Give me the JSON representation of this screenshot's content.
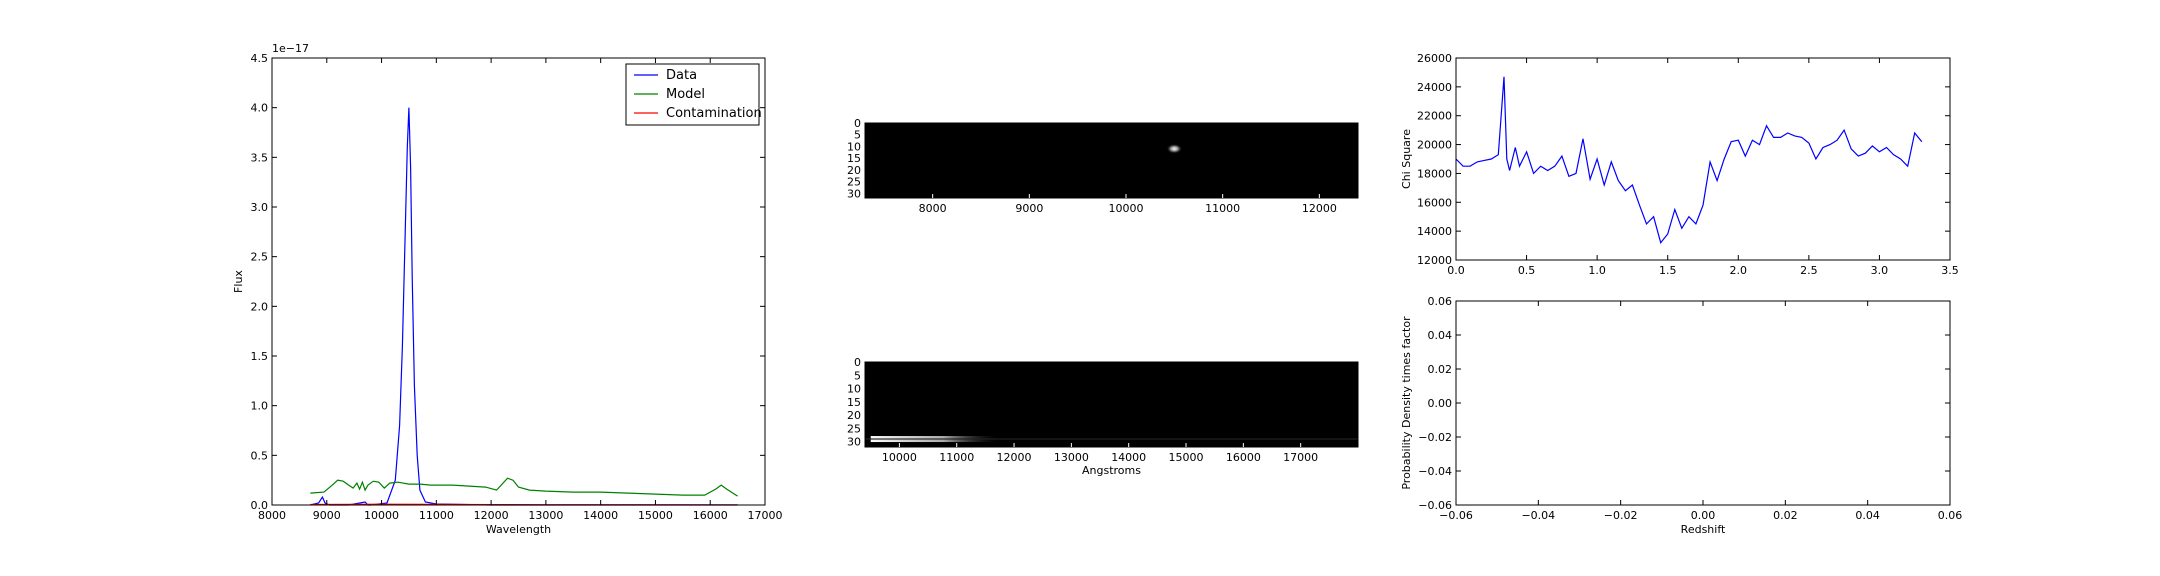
{
  "chart_data": [
    {
      "id": "spectrum",
      "type": "line",
      "xlabel": "Wavelength",
      "ylabel": "Flux",
      "offset_label": "1e−17",
      "xlim": [
        8000,
        17000
      ],
      "ylim": [
        0.0,
        4.5
      ],
      "xticks": [
        8000,
        9000,
        10000,
        11000,
        12000,
        13000,
        14000,
        15000,
        16000,
        17000
      ],
      "yticks": [
        "0.0",
        "0.5",
        "1.0",
        "1.5",
        "2.0",
        "2.5",
        "3.0",
        "3.5",
        "4.0",
        "4.5"
      ],
      "legend_position": "top-right",
      "series": [
        {
          "name": "Data",
          "color": "#0000ff",
          "x": [
            8700,
            8850,
            8920,
            8970,
            9050,
            9400,
            9700,
            9750,
            9800,
            10100,
            10250,
            10330,
            10380,
            10430,
            10470,
            10500,
            10530,
            10560,
            10600,
            10650,
            10700,
            10800,
            11000,
            12000,
            16500
          ],
          "y": [
            0.0,
            0.02,
            0.08,
            0.02,
            0.0,
            0.0,
            0.03,
            0.0,
            0.0,
            0.02,
            0.25,
            0.8,
            1.6,
            2.7,
            3.6,
            4.0,
            3.4,
            2.3,
            1.2,
            0.5,
            0.15,
            0.03,
            0.01,
            0.0,
            0.0
          ]
        },
        {
          "name": "Model",
          "color": "#008000",
          "x": [
            8700,
            8950,
            9100,
            9200,
            9300,
            9400,
            9480,
            9550,
            9600,
            9650,
            9700,
            9750,
            9850,
            9950,
            10050,
            10150,
            10300,
            10500,
            10700,
            10900,
            11300,
            11600,
            11900,
            12100,
            12300,
            12400,
            12500,
            12700,
            13000,
            13500,
            14000,
            14500,
            15000,
            15500,
            15900,
            16100,
            16200,
            16300,
            16500
          ],
          "y": [
            0.12,
            0.13,
            0.2,
            0.25,
            0.24,
            0.2,
            0.17,
            0.22,
            0.16,
            0.23,
            0.15,
            0.2,
            0.24,
            0.23,
            0.17,
            0.22,
            0.23,
            0.21,
            0.21,
            0.2,
            0.2,
            0.19,
            0.18,
            0.15,
            0.27,
            0.25,
            0.18,
            0.15,
            0.14,
            0.13,
            0.13,
            0.12,
            0.11,
            0.1,
            0.1,
            0.16,
            0.2,
            0.16,
            0.09
          ]
        },
        {
          "name": "Contamination",
          "color": "#ff0000",
          "x": [
            8700,
            9500,
            10000,
            11000,
            12000,
            13000,
            14000,
            16500
          ],
          "y": [
            0.005,
            0.006,
            0.008,
            0.006,
            0.004,
            0.003,
            0.003,
            0.002
          ]
        }
      ]
    },
    {
      "id": "image-top",
      "type": "heatmap",
      "xlim": [
        7300,
        12400
      ],
      "ylim": [
        0,
        32
      ],
      "xticks": [
        "8000",
        "9000",
        "10000",
        "11000",
        "12000"
      ],
      "yticks": [
        "0",
        "5",
        "10",
        "15",
        "20",
        "25",
        "30"
      ],
      "source": {
        "x": 10500,
        "y": 11,
        "intensity": 1.0
      },
      "colormap": "gray"
    },
    {
      "id": "image-bottom",
      "type": "heatmap",
      "xlabel": "Angstroms",
      "xlim": [
        9400,
        18000
      ],
      "ylim": [
        0,
        32
      ],
      "xticks": [
        "10000",
        "11000",
        "12000",
        "13000",
        "14000",
        "15000",
        "16000",
        "17000"
      ],
      "yticks": [
        "0",
        "5",
        "10",
        "15",
        "20",
        "25",
        "30"
      ],
      "trace": {
        "x_start": 9500,
        "x_end": 11800,
        "y": 29,
        "intensity": 1.0
      },
      "colormap": "gray"
    },
    {
      "id": "chi-square",
      "type": "line",
      "ylabel": "Chi Square",
      "xlim": [
        0.0,
        3.5
      ],
      "ylim": [
        12000,
        26000
      ],
      "xticks": [
        "0.0",
        "0.5",
        "1.0",
        "1.5",
        "2.0",
        "2.5",
        "3.0",
        "3.5"
      ],
      "yticks": [
        "12000",
        "14000",
        "16000",
        "18000",
        "20000",
        "22000",
        "24000",
        "26000"
      ],
      "series": [
        {
          "color": "#0000ff",
          "x": [
            0.0,
            0.05,
            0.1,
            0.15,
            0.2,
            0.25,
            0.3,
            0.34,
            0.36,
            0.38,
            0.42,
            0.45,
            0.5,
            0.55,
            0.6,
            0.65,
            0.7,
            0.75,
            0.8,
            0.85,
            0.9,
            0.95,
            1.0,
            1.05,
            1.1,
            1.15,
            1.2,
            1.25,
            1.3,
            1.35,
            1.4,
            1.45,
            1.5,
            1.55,
            1.6,
            1.65,
            1.7,
            1.75,
            1.8,
            1.85,
            1.9,
            1.95,
            2.0,
            2.05,
            2.1,
            2.15,
            2.2,
            2.25,
            2.3,
            2.35,
            2.4,
            2.45,
            2.5,
            2.55,
            2.6,
            2.65,
            2.7,
            2.75,
            2.8,
            2.85,
            2.9,
            2.95,
            3.0,
            3.05,
            3.1,
            3.15,
            3.2,
            3.25,
            3.3
          ],
          "y": [
            19000,
            18500,
            18500,
            18800,
            18900,
            19000,
            19300,
            24700,
            19000,
            18200,
            19800,
            18500,
            19500,
            18000,
            18500,
            18200,
            18500,
            19200,
            17800,
            18000,
            20400,
            17600,
            19000,
            17200,
            18800,
            17500,
            16800,
            17200,
            15800,
            14500,
            15000,
            13200,
            13800,
            15500,
            14200,
            15000,
            14500,
            15800,
            18800,
            17500,
            19000,
            20200,
            20300,
            19200,
            20300,
            20000,
            21300,
            20500,
            20500,
            20800,
            20600,
            20500,
            20100,
            19000,
            19800,
            20000,
            20300,
            21000,
            19700,
            19200,
            19400,
            19900,
            19500,
            19800,
            19300,
            19000,
            18500,
            20800,
            20200
          ]
        }
      ]
    },
    {
      "id": "probability",
      "type": "line",
      "xlabel": "Redshift",
      "ylabel": "Probability Density times factor",
      "xlim": [
        -0.06,
        0.06
      ],
      "ylim": [
        -0.06,
        0.06
      ],
      "xticks": [
        "−0.06",
        "−0.04",
        "−0.02",
        "0.00",
        "0.02",
        "0.04",
        "0.06"
      ],
      "yticks": [
        "−0.06",
        "−0.04",
        "−0.02",
        "0.00",
        "0.02",
        "0.04",
        "0.06"
      ],
      "series": []
    }
  ]
}
